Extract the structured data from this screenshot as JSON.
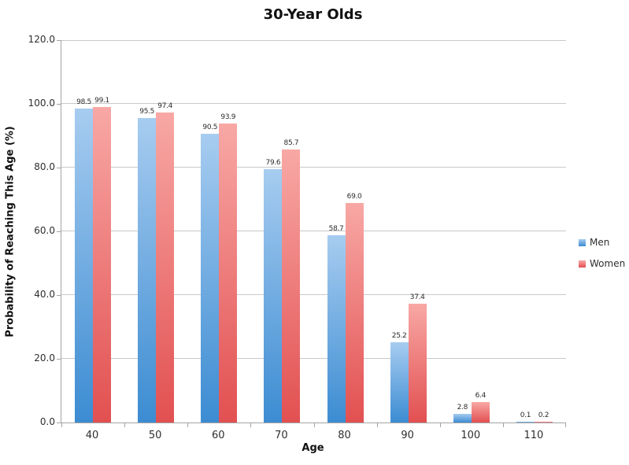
{
  "title": "30-Year Olds",
  "chart_data": {
    "type": "bar",
    "title": "30-Year Olds",
    "xlabel": "Age",
    "ylabel": "Probability of Reaching This Age (%)",
    "categories": [
      "40",
      "50",
      "60",
      "70",
      "80",
      "90",
      "100",
      "110"
    ],
    "series": [
      {
        "name": "Men",
        "color_top": "#a7ccf0",
        "color_bottom": "#3c8cd2",
        "values": [
          98.5,
          95.5,
          90.5,
          79.6,
          58.7,
          25.2,
          2.8,
          0.1
        ]
      },
      {
        "name": "Women",
        "color_top": "#f8a8a5",
        "color_bottom": "#e25051",
        "values": [
          99.1,
          97.4,
          93.9,
          85.7,
          69.0,
          37.4,
          6.4,
          0.2
        ]
      }
    ],
    "data_label_format": "one_decimal",
    "ylim": [
      0,
      120
    ],
    "ytick_step": 20,
    "ytick_labels": [
      "0.0",
      "20.0",
      "40.0",
      "60.0",
      "80.0",
      "100.0",
      "120.0"
    ],
    "grid": true,
    "legend_position": "right"
  }
}
